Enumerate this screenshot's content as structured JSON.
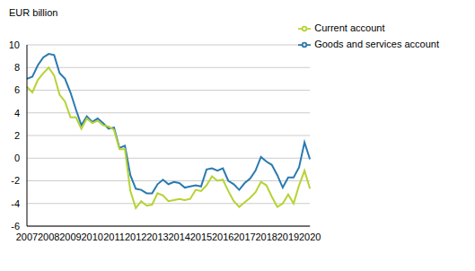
{
  "chart_data": {
    "type": "line",
    "y_label": "EUR billion",
    "categories": [
      "2007",
      null,
      null,
      null,
      "2008",
      null,
      null,
      null,
      "2009",
      null,
      null,
      null,
      "2010",
      null,
      null,
      null,
      "2011",
      null,
      null,
      null,
      "2012",
      null,
      null,
      null,
      "2013",
      null,
      null,
      null,
      "2014",
      null,
      null,
      null,
      "2015",
      null,
      null,
      null,
      "2016",
      null,
      null,
      null,
      "2017",
      null,
      null,
      null,
      "2018",
      null,
      null,
      null,
      "2019",
      null,
      null,
      null,
      "2020"
    ],
    "series": [
      {
        "name": "Goods and services account",
        "color": "#2a7ab0",
        "values": [
          7.0,
          7.2,
          8.2,
          8.9,
          9.2,
          9.1,
          7.5,
          7.0,
          5.8,
          4.3,
          2.9,
          3.7,
          3.2,
          3.5,
          3.1,
          2.6,
          2.7,
          0.9,
          1.1,
          -1.5,
          -2.7,
          -2.8,
          -3.1,
          -3.1,
          -2.3,
          -1.9,
          -2.3,
          -2.1,
          -2.2,
          -2.6,
          -2.5,
          -2.4,
          -2.5,
          -1.0,
          -0.9,
          -1.1,
          -0.9,
          -2.0,
          -2.3,
          -2.8,
          -2.2,
          -1.8,
          -1.1,
          0.1,
          -0.3,
          -0.6,
          -1.5,
          -2.6,
          -1.7,
          -1.7,
          -0.8,
          1.4,
          -0.1
        ]
      },
      {
        "name": "Current account",
        "color": "#b5d334",
        "values": [
          6.3,
          5.8,
          6.9,
          7.5,
          8.0,
          7.3,
          5.6,
          5.0,
          3.6,
          3.6,
          2.6,
          3.5,
          3.1,
          3.3,
          2.9,
          2.8,
          2.5,
          0.8,
          0.8,
          -2.9,
          -4.4,
          -3.8,
          -4.2,
          -4.1,
          -3.1,
          -3.3,
          -3.8,
          -3.7,
          -3.6,
          -3.7,
          -3.6,
          -2.8,
          -2.9,
          -2.4,
          -1.6,
          -2.0,
          -1.9,
          -2.9,
          -3.8,
          -4.3,
          -3.9,
          -3.5,
          -3.0,
          -2.1,
          -2.4,
          -3.4,
          -4.3,
          -4.0,
          -3.2,
          -4.0,
          -2.4,
          -1.1,
          -2.7
        ]
      }
    ],
    "ylim": [
      -6,
      10
    ],
    "yticks": [
      -6,
      -4,
      -2,
      0,
      2,
      4,
      6,
      8,
      10
    ],
    "grid": true,
    "legend": "upper right"
  }
}
